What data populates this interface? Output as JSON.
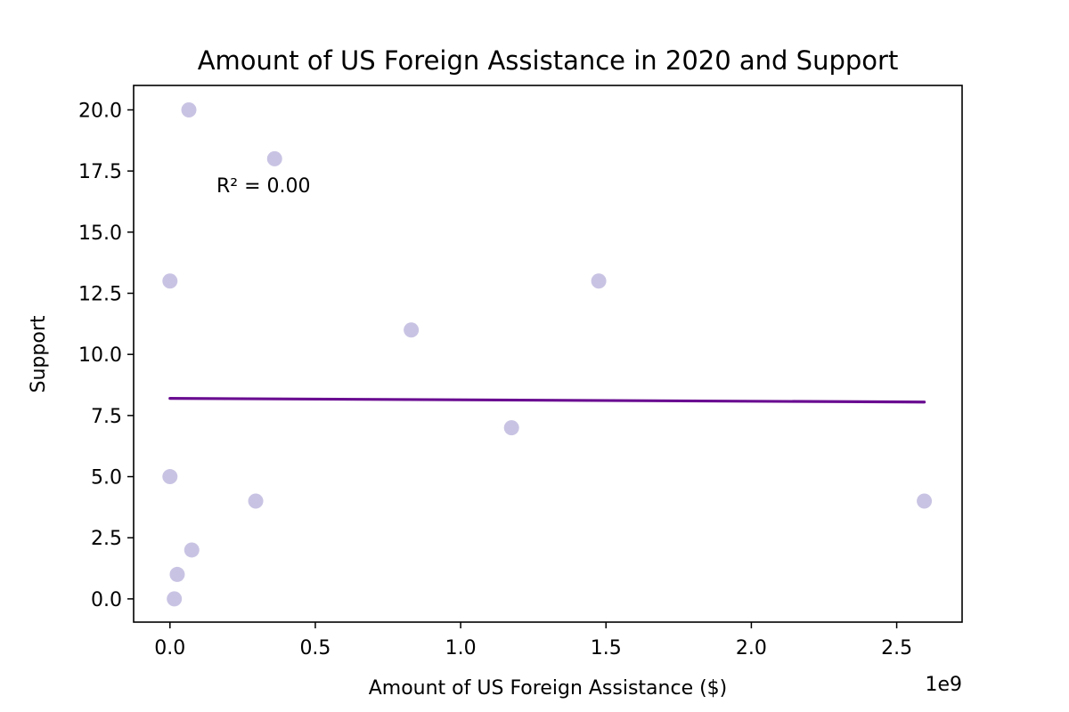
{
  "chart_data": {
    "type": "scatter",
    "title": "Amount of US Foreign Assistance in 2020 and Support",
    "xlabel": "Amount of US Foreign Assistance ($)",
    "ylabel": "Support",
    "x_offset_label": "1e9",
    "annotation": "R² = 0.00",
    "xlim": [
      -0.125,
      2.725
    ],
    "ylim": [
      -0.95,
      21.0
    ],
    "x_ticks": [
      {
        "value": 0.0,
        "label": "0.0"
      },
      {
        "value": 0.5,
        "label": "0.5"
      },
      {
        "value": 1.0,
        "label": "1.0"
      },
      {
        "value": 1.5,
        "label": "1.5"
      },
      {
        "value": 2.0,
        "label": "2.0"
      },
      {
        "value": 2.5,
        "label": "2.5"
      }
    ],
    "y_ticks": [
      {
        "value": 0.0,
        "label": "0.0"
      },
      {
        "value": 2.5,
        "label": "2.5"
      },
      {
        "value": 5.0,
        "label": "5.0"
      },
      {
        "value": 7.5,
        "label": "7.5"
      },
      {
        "value": 10.0,
        "label": "10.0"
      },
      {
        "value": 12.5,
        "label": "12.5"
      },
      {
        "value": 15.0,
        "label": "15.0"
      },
      {
        "value": 17.5,
        "label": "17.5"
      },
      {
        "value": 20.0,
        "label": "20.0"
      }
    ],
    "points": [
      {
        "x": 0.065,
        "y": 20.0
      },
      {
        "x": 0.36,
        "y": 18.0
      },
      {
        "x": 0.0,
        "y": 13.0
      },
      {
        "x": 1.475,
        "y": 13.0
      },
      {
        "x": 0.83,
        "y": 11.0
      },
      {
        "x": 1.175,
        "y": 7.0
      },
      {
        "x": 0.0,
        "y": 5.0
      },
      {
        "x": 0.295,
        "y": 4.0
      },
      {
        "x": 2.595,
        "y": 4.0
      },
      {
        "x": 0.075,
        "y": 2.0
      },
      {
        "x": 0.025,
        "y": 1.0
      },
      {
        "x": 0.015,
        "y": 0.0
      }
    ],
    "trendline": {
      "x": [
        0.0,
        2.595
      ],
      "y": [
        8.2,
        8.05
      ]
    },
    "point_color": "#c9c3e3",
    "line_color": "#6a0d91",
    "grid": false,
    "legend": "none"
  }
}
